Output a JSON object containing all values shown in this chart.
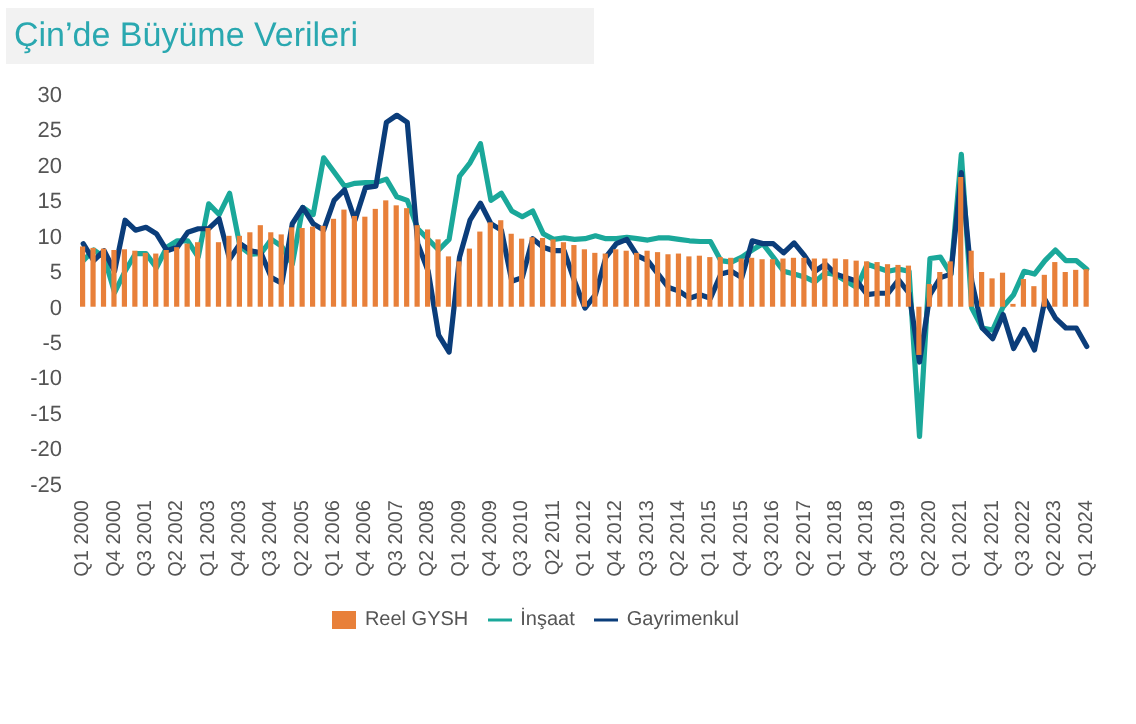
{
  "chart_data": {
    "type": "bar",
    "title": "Çin’de Büyüme Verileri",
    "categories": [
      "Q1 2000",
      null,
      null,
      "Q4 2000",
      null,
      null,
      "Q3 2001",
      null,
      null,
      "Q2 2002",
      null,
      null,
      "Q1 2003",
      null,
      null,
      "Q4 2003",
      null,
      null,
      "Q3 2004",
      null,
      null,
      "Q2 2005",
      null,
      null,
      "Q1 2006",
      null,
      null,
      "Q4 2006",
      null,
      null,
      "Q3 2007",
      null,
      null,
      "Q2 2008",
      null,
      null,
      "Q1 2009",
      null,
      null,
      "Q4 2009",
      null,
      null,
      "Q3 2010",
      null,
      null,
      "Q2 2011",
      null,
      null,
      "Q1 2012",
      null,
      null,
      "Q4 2012",
      null,
      null,
      "Q3 2013",
      null,
      null,
      "Q2 2014",
      null,
      null,
      "Q1 2015",
      null,
      null,
      "Q4 2015",
      null,
      null,
      "Q3 2016",
      null,
      null,
      "Q2 2017",
      null,
      null,
      "Q1 2018",
      null,
      null,
      "Q4 2018",
      null,
      null,
      "Q3 2019",
      null,
      null,
      "Q2 2020",
      null,
      null,
      "Q1 2021",
      null,
      null,
      "Q4 2021",
      null,
      null,
      "Q3 2022",
      null,
      null,
      "Q2 2023",
      null,
      null,
      "Q1 2024"
    ],
    "series": [
      {
        "name": "Reel GYSH",
        "type": "bar",
        "color": "#e8803a",
        "values": [
          8.5,
          8.3,
          8.2,
          8.0,
          8.1,
          7.9,
          7.6,
          7.5,
          8.0,
          8.4,
          8.9,
          9.1,
          11.1,
          9.1,
          10.0,
          10.0,
          10.5,
          11.5,
          10.5,
          10.2,
          11.2,
          11.1,
          11.3,
          11.4,
          12.4,
          13.7,
          12.8,
          12.7,
          13.8,
          15.0,
          14.3,
          13.9,
          11.5,
          10.9,
          9.5,
          7.1,
          6.4,
          8.2,
          10.6,
          11.9,
          12.2,
          10.3,
          9.6,
          9.8,
          9.7,
          9.5,
          9.1,
          8.7,
          8.1,
          7.6,
          7.5,
          8.1,
          7.9,
          7.6,
          7.9,
          7.7,
          7.4,
          7.5,
          7.1,
          7.2,
          7.0,
          7.0,
          6.9,
          6.8,
          6.9,
          6.7,
          6.7,
          6.8,
          6.9,
          6.9,
          6.8,
          6.8,
          6.8,
          6.7,
          6.5,
          6.4,
          6.3,
          6.0,
          5.9,
          5.8,
          -6.8,
          3.2,
          4.9,
          6.4,
          18.3,
          7.9,
          4.9,
          4.0,
          4.8,
          0.4,
          3.9,
          2.9,
          4.5,
          6.3,
          4.9,
          5.2,
          5.3
        ]
      },
      {
        "name": "İnşaat",
        "type": "line",
        "color": "#1aa89a",
        "values": [
          6.5,
          8,
          7,
          2,
          5,
          7.5,
          7.5,
          5.5,
          8.4,
          9.3,
          9.3,
          7,
          14.5,
          13,
          16,
          8.5,
          7.4,
          7.5,
          9.5,
          8.5,
          6,
          14,
          13,
          21,
          19,
          17,
          17.4,
          17.5,
          17.5,
          18,
          15.5,
          15,
          11,
          9.5,
          8,
          9.5,
          18.4,
          20.3,
          23,
          15,
          16,
          13.5,
          12.7,
          13.5,
          10.3,
          9.5,
          9.7,
          9.5,
          9.6,
          10,
          9.6,
          9.6,
          9.8,
          9.6,
          9.4,
          9.7,
          9.7,
          9.5,
          9.3,
          9.2,
          9.2,
          6.5,
          6.3,
          7,
          8,
          8.9,
          7,
          5,
          4.6,
          4.2,
          3.5,
          4.8,
          4.5,
          3.6,
          2.7,
          6,
          5.5,
          5,
          5.3,
          5,
          -18.3,
          6.8,
          7,
          4.6,
          21.5,
          -0.2,
          -3,
          -3.3,
          0,
          1.7,
          5,
          4.6,
          6.5,
          8,
          6.5,
          6.5,
          5.3
        ]
      },
      {
        "name": "Gayrimenkul",
        "type": "line",
        "color": "#0b3d7a",
        "values": [
          8.9,
          6.5,
          7.9,
          5,
          12.2,
          10.8,
          11.2,
          10.3,
          7.9,
          8.4,
          10.5,
          11,
          11,
          12.4,
          6.7,
          8.9,
          7.9,
          7.6,
          4.1,
          3.3,
          11.7,
          14,
          11.7,
          10.8,
          15,
          16.5,
          12.2,
          16.8,
          17,
          26,
          27,
          26,
          8.9,
          5,
          -4,
          -6.4,
          7,
          12.2,
          14.6,
          11.7,
          10.8,
          3.6,
          4.1,
          9.6,
          8.4,
          7.9,
          7.9,
          3.6,
          -0.2,
          1.7,
          7,
          8.9,
          9.5,
          7.2,
          6.5,
          4.6,
          2.7,
          2.2,
          1.2,
          1.7,
          1.2,
          4.6,
          5,
          4.1,
          9.3,
          8.9,
          8.9,
          7.6,
          9,
          7.2,
          5,
          6,
          4.6,
          4.1,
          3.6,
          1.7,
          1.9,
          1.9,
          3.8,
          1.9,
          -7.8,
          1.7,
          4.1,
          4.6,
          18.9,
          3.6,
          -3,
          -4.5,
          -1.1,
          -5.9,
          -3.2,
          -6.1,
          1,
          -1.6,
          -3,
          -3,
          -5.6
        ]
      }
    ],
    "ylim": [
      -25,
      30
    ],
    "yticks": [
      -25,
      -20,
      -15,
      -10,
      -5,
      0,
      5,
      10,
      15,
      20,
      25,
      30
    ],
    "grid": false,
    "legend": "bottom"
  }
}
